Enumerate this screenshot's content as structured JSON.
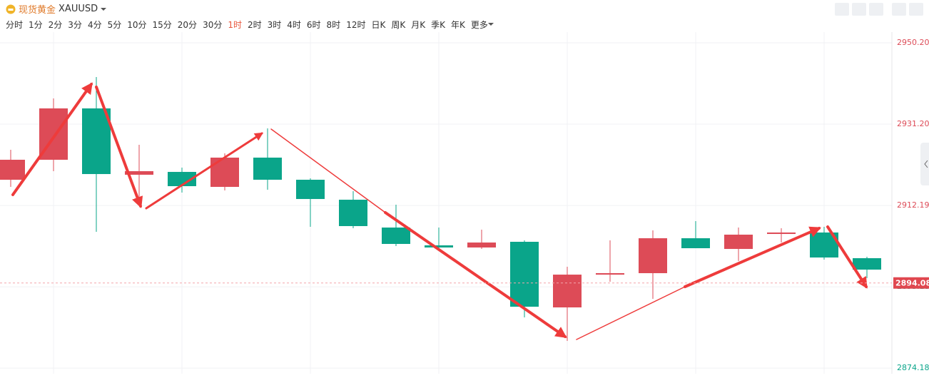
{
  "toolbar": {
    "name": "现货黄金",
    "symbol": "XAUUSD",
    "periods": [
      "分时",
      "1分",
      "2分",
      "3分",
      "4分",
      "5分",
      "10分",
      "15分",
      "20分",
      "30分",
      "1时",
      "2时",
      "3时",
      "4时",
      "6时",
      "8时",
      "12时",
      "日K",
      "周K",
      "月K",
      "季K",
      "年K",
      "更多"
    ],
    "active": "1时"
  },
  "chart_data": {
    "type": "candlestick",
    "open": [
      2918.2,
      2922.87,
      2934.87,
      2919.37,
      2920.03,
      2916.53,
      2923.37,
      2918.2,
      2913.53,
      2907.03,
      2902.87,
      2902.37,
      2903.7,
      2888.37,
      2896.03,
      2896.37,
      2904.53,
      2902.03,
      2905.53,
      2905.87,
      2899.87
    ],
    "high": [
      2925.2,
      2937.2,
      2942.2,
      2926.37,
      2921.03,
      2924.37,
      2930.2,
      2918.53,
      2915.53,
      2912.37,
      2907.03,
      2906.53,
      2904.03,
      2897.87,
      2904.03,
      2906.37,
      2908.53,
      2907.03,
      2906.87,
      2907.2,
      2900.2
    ],
    "low": [
      2916.53,
      2920.2,
      2906.03,
      2913.53,
      2915.2,
      2915.7,
      2915.87,
      2907.2,
      2906.87,
      2902.7,
      2901.87,
      2902.03,
      2886.03,
      2880.53,
      2894.37,
      2890.37,
      2902.2,
      2899.2,
      2903.53,
      2899.53,
      2895.2
    ],
    "close": [
      2922.87,
      2934.87,
      2919.53,
      2920.2,
      2916.7,
      2923.37,
      2918.2,
      2913.7,
      2907.37,
      2903.2,
      2902.37,
      2903.53,
      2888.53,
      2896.03,
      2896.37,
      2904.53,
      2902.2,
      2905.37,
      2905.87,
      2900.03,
      2897.2
    ],
    "up_color": "#dd4b57",
    "down_color": "#0aa58a",
    "ylim": [
      2872.87,
      2952.7
    ],
    "yticks": [
      {
        "value": 2950.2,
        "label": "2950.20"
      },
      {
        "value": 2931.2,
        "label": "2931.20"
      },
      2912.19,
      2893.18,
      2874.18
    ],
    "last_price": 2894.08,
    "grid": true
  }
}
